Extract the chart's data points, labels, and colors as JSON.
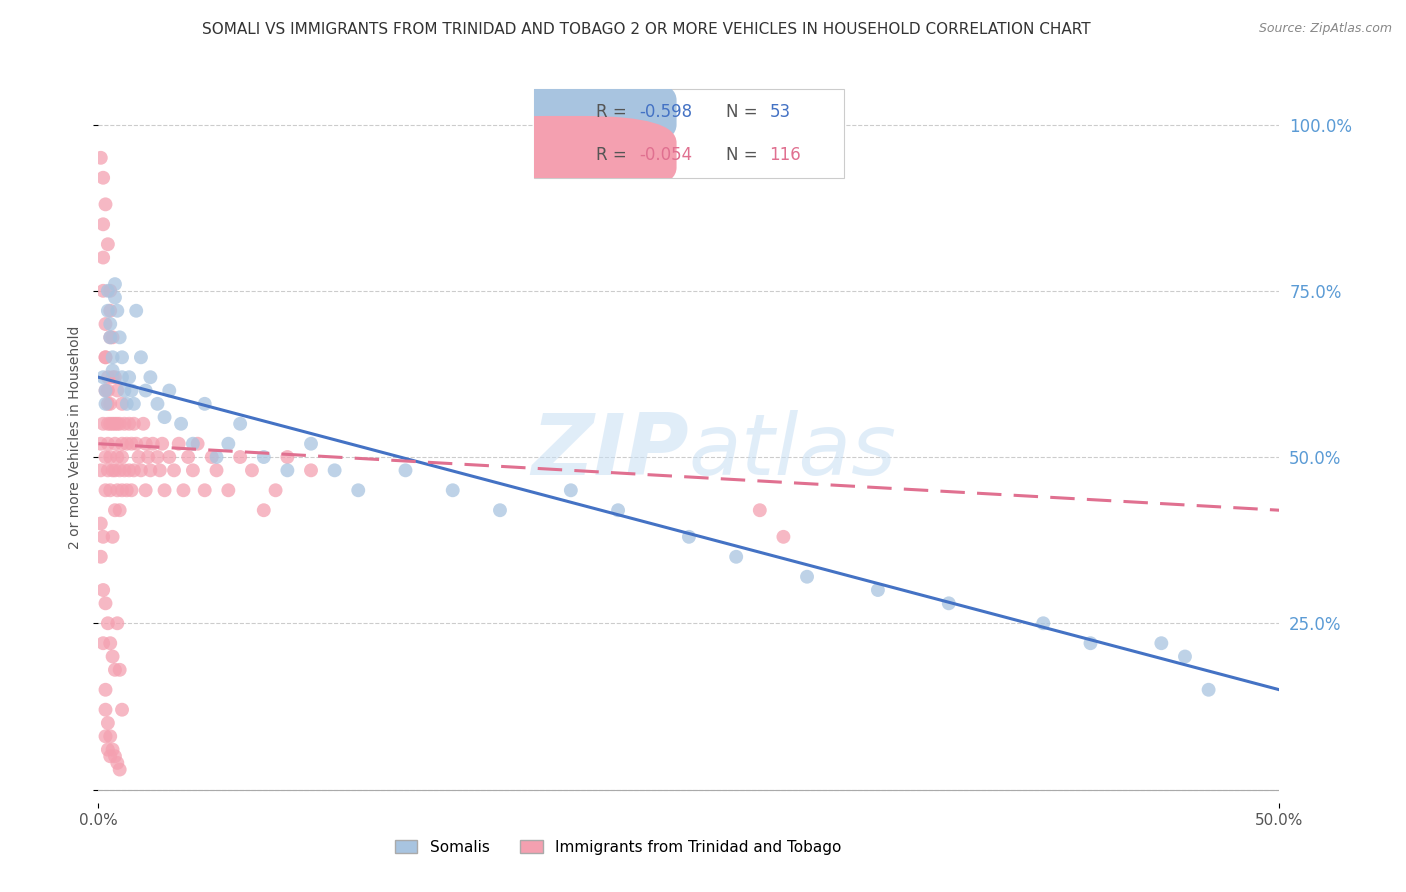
{
  "title": "SOMALI VS IMMIGRANTS FROM TRINIDAD AND TOBAGO 2 OR MORE VEHICLES IN HOUSEHOLD CORRELATION CHART",
  "source": "Source: ZipAtlas.com",
  "ylabel": "2 or more Vehicles in Household",
  "xlim": [
    0.0,
    0.5
  ],
  "ylim": [
    -0.02,
    1.08
  ],
  "xticks": [
    0.0,
    0.5
  ],
  "xticklabels": [
    "0.0%",
    "50.0%"
  ],
  "yticks": [
    0.0,
    0.25,
    0.5,
    0.75,
    1.0
  ],
  "yticklabels_right": [
    "",
    "25.0%",
    "50.0%",
    "75.0%",
    "100.0%"
  ],
  "grid_color": "#cccccc",
  "background_color": "#ffffff",
  "somali_color": "#a8c4e0",
  "somali_line_color": "#4472c4",
  "trinidad_color": "#f4a0b0",
  "trinidad_line_color": "#e07090",
  "somali_R": -0.598,
  "somali_N": 53,
  "trinidad_R": -0.054,
  "trinidad_N": 116,
  "legend_label_somali": "Somalis",
  "legend_label_trinidad": "Immigrants from Trinidad and Tobago",
  "watermark_zip": "ZIP",
  "watermark_atlas": "atlas",
  "title_fontsize": 11,
  "axis_label_fontsize": 10,
  "tick_fontsize": 11,
  "right_tick_color": "#5b9bd5",
  "somali_x": [
    0.002,
    0.003,
    0.003,
    0.004,
    0.004,
    0.005,
    0.005,
    0.006,
    0.006,
    0.007,
    0.007,
    0.008,
    0.009,
    0.01,
    0.01,
    0.011,
    0.012,
    0.013,
    0.014,
    0.015,
    0.016,
    0.018,
    0.02,
    0.022,
    0.025,
    0.028,
    0.03,
    0.035,
    0.04,
    0.045,
    0.05,
    0.055,
    0.06,
    0.07,
    0.08,
    0.09,
    0.1,
    0.11,
    0.13,
    0.15,
    0.17,
    0.2,
    0.22,
    0.25,
    0.27,
    0.3,
    0.33,
    0.36,
    0.4,
    0.42,
    0.45,
    0.46,
    0.47
  ],
  "somali_y": [
    0.62,
    0.58,
    0.6,
    0.72,
    0.75,
    0.7,
    0.68,
    0.65,
    0.63,
    0.76,
    0.74,
    0.72,
    0.68,
    0.65,
    0.62,
    0.6,
    0.58,
    0.62,
    0.6,
    0.58,
    0.72,
    0.65,
    0.6,
    0.62,
    0.58,
    0.56,
    0.6,
    0.55,
    0.52,
    0.58,
    0.5,
    0.52,
    0.55,
    0.5,
    0.48,
    0.52,
    0.48,
    0.45,
    0.48,
    0.45,
    0.42,
    0.45,
    0.42,
    0.38,
    0.35,
    0.32,
    0.3,
    0.28,
    0.25,
    0.22,
    0.22,
    0.2,
    0.15
  ],
  "trinidad_x": [
    0.001,
    0.001,
    0.002,
    0.002,
    0.002,
    0.002,
    0.003,
    0.003,
    0.003,
    0.003,
    0.003,
    0.004,
    0.004,
    0.004,
    0.004,
    0.004,
    0.005,
    0.005,
    0.005,
    0.005,
    0.005,
    0.006,
    0.006,
    0.006,
    0.006,
    0.007,
    0.007,
    0.007,
    0.007,
    0.008,
    0.008,
    0.008,
    0.008,
    0.009,
    0.009,
    0.009,
    0.01,
    0.01,
    0.01,
    0.01,
    0.011,
    0.011,
    0.012,
    0.012,
    0.013,
    0.013,
    0.014,
    0.014,
    0.015,
    0.015,
    0.016,
    0.017,
    0.018,
    0.019,
    0.02,
    0.02,
    0.021,
    0.022,
    0.023,
    0.025,
    0.026,
    0.027,
    0.028,
    0.03,
    0.032,
    0.034,
    0.036,
    0.038,
    0.04,
    0.042,
    0.045,
    0.048,
    0.05,
    0.055,
    0.06,
    0.065,
    0.07,
    0.075,
    0.08,
    0.09,
    0.001,
    0.002,
    0.003,
    0.004,
    0.005,
    0.006,
    0.007,
    0.008,
    0.009,
    0.01,
    0.002,
    0.003,
    0.004,
    0.005,
    0.006,
    0.007,
    0.003,
    0.004,
    0.005,
    0.001,
    0.001,
    0.002,
    0.002,
    0.003,
    0.003,
    0.004,
    0.005,
    0.006,
    0.007,
    0.008,
    0.009,
    0.28,
    0.29,
    0.003,
    0.004,
    0.005
  ],
  "trinidad_y": [
    0.52,
    0.48,
    0.75,
    0.55,
    0.8,
    0.85,
    0.6,
    0.65,
    0.7,
    0.45,
    0.5,
    0.55,
    0.58,
    0.62,
    0.48,
    0.52,
    0.68,
    0.45,
    0.5,
    0.58,
    0.72,
    0.55,
    0.48,
    0.62,
    0.38,
    0.55,
    0.48,
    0.52,
    0.42,
    0.6,
    0.45,
    0.55,
    0.5,
    0.48,
    0.55,
    0.42,
    0.52,
    0.58,
    0.45,
    0.5,
    0.55,
    0.48,
    0.52,
    0.45,
    0.55,
    0.48,
    0.52,
    0.45,
    0.55,
    0.48,
    0.52,
    0.5,
    0.48,
    0.55,
    0.52,
    0.45,
    0.5,
    0.48,
    0.52,
    0.5,
    0.48,
    0.52,
    0.45,
    0.5,
    0.48,
    0.52,
    0.45,
    0.5,
    0.48,
    0.52,
    0.45,
    0.5,
    0.48,
    0.45,
    0.5,
    0.48,
    0.42,
    0.45,
    0.5,
    0.48,
    0.95,
    0.92,
    0.88,
    0.82,
    0.75,
    0.68,
    0.62,
    0.25,
    0.18,
    0.12,
    0.3,
    0.28,
    0.25,
    0.22,
    0.2,
    0.18,
    0.08,
    0.06,
    0.05,
    0.35,
    0.4,
    0.38,
    0.22,
    0.15,
    0.12,
    0.1,
    0.08,
    0.06,
    0.05,
    0.04,
    0.03,
    0.42,
    0.38,
    0.65,
    0.6,
    0.55
  ]
}
